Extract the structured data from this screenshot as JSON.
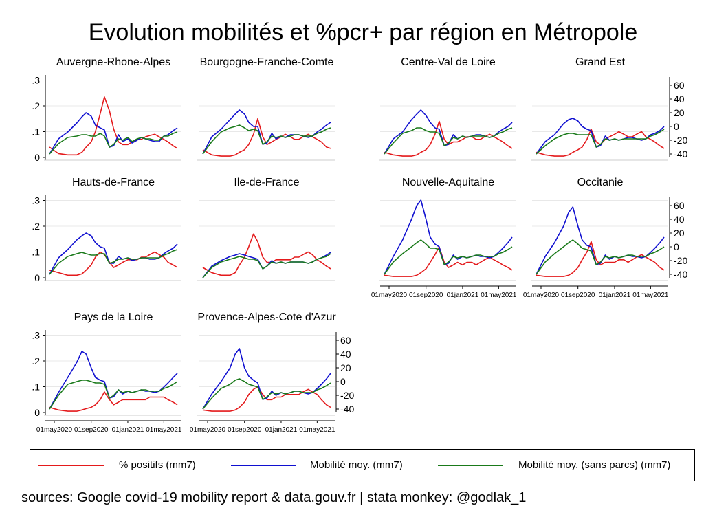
{
  "title": "Evolution mobilités et %pcr+ par région en Métropole",
  "footer": "sources: Google covid-19 mobility report & data.gouv.fr | stata monkey: @godlak_1",
  "legend": [
    {
      "label": "% positifs (mm7)",
      "color": "#e41a1c"
    },
    {
      "label": "Mobilité moy. (mm7)",
      "color": "#1010d0"
    },
    {
      "label": "Mobilité moy. (sans parcs) (mm7)",
      "color": "#1a7a1a"
    }
  ],
  "chart_data": {
    "type": "line",
    "layout": "small-multiples",
    "x_tick_labels": [
      "01may2020",
      "01sep2020",
      "01jan2021",
      "01may2021"
    ],
    "left_axis": {
      "tick_labels": [
        "0",
        ".1",
        ".2",
        ".3"
      ],
      "ylim": [
        0,
        0.32
      ]
    },
    "right_axis": {
      "tick_labels": [
        "-40",
        "-20",
        "0",
        "20",
        "40",
        "60"
      ],
      "ylim": [
        -45,
        75
      ]
    },
    "x_dates": [
      "2020-04-15",
      "2020-05-15",
      "2020-06-15",
      "2020-07-15",
      "2020-08-01",
      "2020-08-15",
      "2020-09-01",
      "2020-09-15",
      "2020-10-01",
      "2020-10-15",
      "2020-11-01",
      "2020-11-15",
      "2020-12-01",
      "2020-12-15",
      "2021-01-01",
      "2021-01-15",
      "2021-02-01",
      "2021-02-15",
      "2021-03-01",
      "2021-03-15",
      "2021-04-01",
      "2021-04-15",
      "2021-05-01",
      "2021-05-15",
      "2021-06-01",
      "2021-06-15"
    ],
    "panels": [
      {
        "name": "Auvergne-Rhone-Alpes",
        "positifs": [
          0.04,
          0.015,
          0.01,
          0.01,
          0.02,
          0.04,
          0.06,
          0.1,
          0.17,
          0.235,
          0.18,
          0.11,
          0.06,
          0.05,
          0.05,
          0.06,
          0.07,
          0.07,
          0.08,
          0.085,
          0.09,
          0.08,
          0.07,
          0.06,
          0.045,
          0.035
        ],
        "mobilite": [
          -40,
          -18,
          -8,
          5,
          14,
          20,
          15,
          2,
          -2,
          -5,
          -30,
          -28,
          -12,
          -22,
          -18,
          -24,
          -20,
          -16,
          -18,
          -20,
          -22,
          -22,
          -14,
          -12,
          -6,
          -2
        ],
        "mobilite_sans_parcs": [
          -40,
          -25,
          -16,
          -14,
          -12,
          -12,
          -14,
          -14,
          -10,
          -14,
          -30,
          -26,
          -18,
          -20,
          -16,
          -22,
          -18,
          -16,
          -18,
          -18,
          -20,
          -20,
          -14,
          -14,
          -10,
          -8
        ]
      },
      {
        "name": "Bourgogne-Franche-Comte",
        "positifs": [
          0.03,
          0.01,
          0.005,
          0.005,
          0.01,
          0.02,
          0.03,
          0.05,
          0.09,
          0.15,
          0.08,
          0.05,
          0.06,
          0.07,
          0.08,
          0.09,
          0.08,
          0.07,
          0.07,
          0.08,
          0.09,
          0.08,
          0.07,
          0.06,
          0.04,
          0.035
        ],
        "mobilite": [
          -40,
          -15,
          -4,
          10,
          18,
          24,
          18,
          6,
          0,
          0,
          -26,
          -24,
          -10,
          -18,
          -14,
          -16,
          -12,
          -12,
          -12,
          -14,
          -16,
          -14,
          -8,
          -4,
          2,
          6
        ],
        "mobilite_sans_parcs": [
          -40,
          -22,
          -8,
          -2,
          0,
          2,
          -2,
          -6,
          -4,
          -6,
          -26,
          -22,
          -14,
          -16,
          -14,
          -16,
          -14,
          -12,
          -12,
          -14,
          -14,
          -14,
          -10,
          -8,
          -4,
          -2
        ]
      },
      {
        "name": "Centre-Val de Loire",
        "positifs": [
          0.02,
          0.01,
          0.005,
          0.005,
          0.01,
          0.02,
          0.03,
          0.05,
          0.09,
          0.14,
          0.07,
          0.05,
          0.06,
          0.06,
          0.07,
          0.08,
          0.08,
          0.07,
          0.07,
          0.08,
          0.09,
          0.08,
          0.07,
          0.06,
          0.045,
          0.035
        ],
        "mobilite": [
          -40,
          -18,
          -8,
          10,
          18,
          24,
          16,
          6,
          -2,
          -4,
          -28,
          -26,
          -12,
          -18,
          -14,
          -16,
          -14,
          -12,
          -12,
          -14,
          -16,
          -14,
          -8,
          -4,
          0,
          6
        ],
        "mobilite_sans_parcs": [
          -40,
          -24,
          -10,
          -6,
          -2,
          -2,
          -6,
          -8,
          -8,
          -10,
          -28,
          -24,
          -16,
          -18,
          -14,
          -16,
          -14,
          -14,
          -14,
          -14,
          -16,
          -14,
          -10,
          -8,
          -4,
          -2
        ]
      },
      {
        "name": "Grand Est",
        "positifs": [
          0.02,
          0.01,
          0.005,
          0.005,
          0.01,
          0.02,
          0.03,
          0.04,
          0.07,
          0.11,
          0.06,
          0.05,
          0.07,
          0.08,
          0.09,
          0.1,
          0.09,
          0.08,
          0.08,
          0.09,
          0.1,
          0.08,
          0.07,
          0.06,
          0.045,
          0.035
        ],
        "mobilite": [
          -40,
          -22,
          -12,
          4,
          10,
          12,
          8,
          0,
          -4,
          -6,
          -30,
          -28,
          -14,
          -20,
          -18,
          -20,
          -18,
          -16,
          -16,
          -18,
          -20,
          -18,
          -12,
          -10,
          -6,
          0
        ],
        "mobilite_sans_parcs": [
          -40,
          -28,
          -18,
          -12,
          -10,
          -10,
          -12,
          -12,
          -12,
          -12,
          -30,
          -26,
          -18,
          -20,
          -18,
          -20,
          -18,
          -18,
          -18,
          -18,
          -18,
          -18,
          -14,
          -12,
          -8,
          -4
        ]
      },
      {
        "name": "Hauts-de-France",
        "positifs": [
          0.03,
          0.02,
          0.01,
          0.01,
          0.015,
          0.03,
          0.05,
          0.08,
          0.1,
          0.09,
          0.06,
          0.04,
          0.05,
          0.06,
          0.07,
          0.07,
          0.07,
          0.08,
          0.08,
          0.09,
          0.1,
          0.09,
          0.08,
          0.06,
          0.05,
          0.04
        ],
        "mobilite": [
          -40,
          -16,
          -4,
          10,
          16,
          20,
          16,
          6,
          0,
          -2,
          -24,
          -24,
          -14,
          -18,
          -16,
          -20,
          -18,
          -16,
          -16,
          -18,
          -18,
          -16,
          -10,
          -6,
          -2,
          4
        ],
        "mobilite_sans_parcs": [
          -40,
          -24,
          -14,
          -10,
          -8,
          -10,
          -12,
          -12,
          -10,
          -10,
          -24,
          -22,
          -18,
          -18,
          -16,
          -18,
          -18,
          -16,
          -16,
          -16,
          -16,
          -16,
          -12,
          -10,
          -6,
          -4
        ]
      },
      {
        "name": "Ile-de-France",
        "positifs": [
          0.04,
          0.02,
          0.01,
          0.01,
          0.02,
          0.05,
          0.08,
          0.12,
          0.17,
          0.14,
          0.08,
          0.06,
          0.06,
          0.07,
          0.07,
          0.07,
          0.07,
          0.08,
          0.08,
          0.09,
          0.1,
          0.09,
          0.07,
          0.06,
          0.045,
          0.035
        ],
        "mobilite": [
          -45,
          -28,
          -20,
          -14,
          -12,
          -10,
          -12,
          -14,
          -16,
          -18,
          -32,
          -28,
          -20,
          -24,
          -22,
          -24,
          -22,
          -22,
          -22,
          -22,
          -24,
          -22,
          -18,
          -16,
          -12,
          -8
        ],
        "mobilite_sans_parcs": [
          -45,
          -30,
          -22,
          -18,
          -16,
          -14,
          -16,
          -18,
          -18,
          -20,
          -32,
          -28,
          -22,
          -24,
          -22,
          -24,
          -22,
          -22,
          -22,
          -22,
          -24,
          -22,
          -18,
          -16,
          -14,
          -10
        ]
      },
      {
        "name": "Nouvelle-Aquitaine",
        "positifs": [
          0.01,
          0.005,
          0.005,
          0.005,
          0.01,
          0.02,
          0.035,
          0.06,
          0.09,
          0.12,
          0.06,
          0.04,
          0.05,
          0.06,
          0.05,
          0.06,
          0.06,
          0.05,
          0.06,
          0.07,
          0.08,
          0.07,
          0.06,
          0.05,
          0.04,
          0.03
        ],
        "mobilite": [
          -40,
          -14,
          10,
          40,
          60,
          68,
          40,
          14,
          4,
          0,
          -26,
          -24,
          -12,
          -18,
          -14,
          -16,
          -14,
          -12,
          -14,
          -14,
          -16,
          -14,
          -8,
          -2,
          6,
          14
        ],
        "mobilite_sans_parcs": [
          -40,
          -22,
          -10,
          0,
          6,
          10,
          4,
          -2,
          -2,
          -4,
          -26,
          -22,
          -14,
          -16,
          -14,
          -16,
          -14,
          -12,
          -12,
          -14,
          -14,
          -14,
          -10,
          -8,
          -4,
          0
        ]
      },
      {
        "name": "Occitanie",
        "positifs": [
          0.01,
          0.005,
          0.005,
          0.005,
          0.01,
          0.02,
          0.04,
          0.07,
          0.1,
          0.14,
          0.07,
          0.05,
          0.06,
          0.06,
          0.06,
          0.07,
          0.07,
          0.06,
          0.07,
          0.08,
          0.09,
          0.08,
          0.07,
          0.06,
          0.04,
          0.03
        ],
        "mobilite": [
          -40,
          -14,
          6,
          30,
          50,
          58,
          30,
          10,
          2,
          0,
          -26,
          -24,
          -12,
          -18,
          -14,
          -16,
          -14,
          -12,
          -14,
          -14,
          -16,
          -14,
          -8,
          -2,
          6,
          14
        ],
        "mobilite_sans_parcs": [
          -40,
          -22,
          -10,
          0,
          6,
          10,
          4,
          -2,
          -4,
          -6,
          -26,
          -22,
          -14,
          -16,
          -14,
          -16,
          -14,
          -12,
          -12,
          -14,
          -14,
          -14,
          -10,
          -8,
          -4,
          0
        ]
      },
      {
        "name": "Pays de la Loire",
        "positifs": [
          0.02,
          0.01,
          0.005,
          0.005,
          0.01,
          0.015,
          0.02,
          0.03,
          0.05,
          0.08,
          0.05,
          0.03,
          0.04,
          0.05,
          0.05,
          0.05,
          0.05,
          0.05,
          0.05,
          0.06,
          0.06,
          0.06,
          0.06,
          0.05,
          0.04,
          0.03
        ],
        "mobilite": [
          -40,
          -16,
          6,
          28,
          44,
          40,
          20,
          6,
          2,
          0,
          -24,
          -22,
          -12,
          -18,
          -14,
          -16,
          -14,
          -12,
          -14,
          -14,
          -16,
          -14,
          -8,
          -2,
          6,
          12
        ],
        "mobilite_sans_parcs": [
          -40,
          -20,
          -4,
          0,
          2,
          2,
          0,
          -2,
          -2,
          -4,
          -24,
          -20,
          -12,
          -16,
          -14,
          -16,
          -14,
          -12,
          -12,
          -14,
          -14,
          -14,
          -10,
          -8,
          -4,
          0
        ]
      },
      {
        "name": "Provence-Alpes-Cote d'Azur",
        "positifs": [
          0.01,
          0.005,
          0.005,
          0.005,
          0.01,
          0.02,
          0.04,
          0.07,
          0.09,
          0.1,
          0.07,
          0.05,
          0.05,
          0.06,
          0.06,
          0.07,
          0.07,
          0.07,
          0.07,
          0.08,
          0.09,
          0.08,
          0.07,
          0.05,
          0.03,
          0.02
        ],
        "mobilite": [
          -40,
          -18,
          0,
          20,
          40,
          48,
          20,
          8,
          2,
          -2,
          -26,
          -24,
          -14,
          -20,
          -16,
          -18,
          -16,
          -14,
          -14,
          -16,
          -18,
          -16,
          -10,
          -4,
          4,
          12
        ],
        "mobilite_sans_parcs": [
          -40,
          -24,
          -10,
          -4,
          2,
          4,
          0,
          -4,
          -6,
          -8,
          -26,
          -22,
          -16,
          -18,
          -16,
          -18,
          -16,
          -14,
          -14,
          -16,
          -16,
          -16,
          -12,
          -10,
          -6,
          -2
        ]
      }
    ]
  }
}
